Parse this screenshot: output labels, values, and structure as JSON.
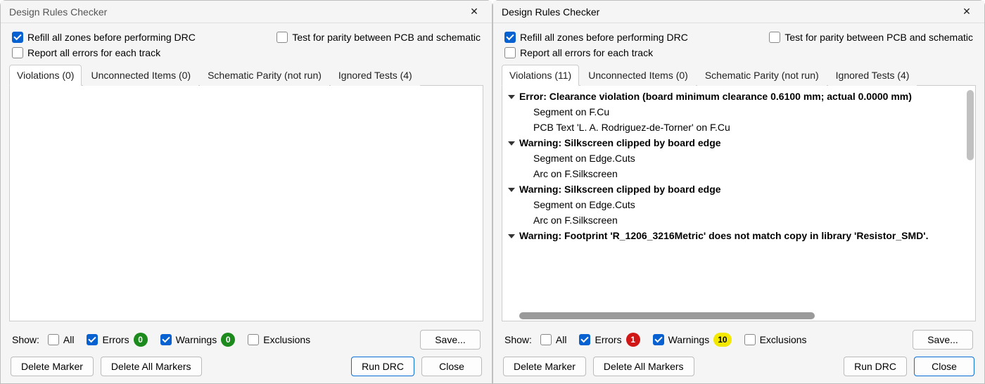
{
  "colors": {
    "accent": "#0761d1",
    "badge_green": "#1c8a1c",
    "badge_red": "#d11616",
    "badge_yellow": "#f2e800",
    "window_bg": "#f5f5f5",
    "pane_bg": "#ffffff",
    "border": "#cccccc",
    "scrollbar": "#9a9a9a"
  },
  "left": {
    "title": "Design Rules Checker",
    "options": {
      "refill": {
        "label": "Refill all zones before performing DRC",
        "checked": true
      },
      "parity": {
        "label": "Test for parity between PCB and schematic",
        "checked": false
      },
      "report_all": {
        "label": "Report all errors for each track",
        "checked": false
      }
    },
    "tabs": [
      {
        "label": "Violations (0)",
        "active": true
      },
      {
        "label": "Unconnected Items (0)",
        "active": false
      },
      {
        "label": "Schematic Parity (not run)",
        "active": false
      },
      {
        "label": "Ignored Tests (4)",
        "active": false
      }
    ],
    "tree": [],
    "show": {
      "label": "Show:",
      "all": {
        "label": "All",
        "checked": false
      },
      "errors": {
        "label": "Errors",
        "checked": true,
        "count": "0",
        "count_color": "green"
      },
      "warnings": {
        "label": "Warnings",
        "checked": true,
        "count": "0",
        "count_color": "green"
      },
      "exclusions": {
        "label": "Exclusions",
        "checked": false
      }
    },
    "buttons": {
      "save": "Save...",
      "delete_marker": "Delete Marker",
      "delete_all": "Delete All Markers",
      "run": "Run DRC",
      "close": "Close"
    }
  },
  "right": {
    "title": "Design Rules Checker",
    "options": {
      "refill": {
        "label": "Refill all zones before performing DRC",
        "checked": true
      },
      "parity": {
        "label": "Test for parity between PCB and schematic",
        "checked": false
      },
      "report_all": {
        "label": "Report all errors for each track",
        "checked": false
      }
    },
    "tabs": [
      {
        "label": "Violations (11)",
        "active": true
      },
      {
        "label": "Unconnected Items (0)",
        "active": false
      },
      {
        "label": "Schematic Parity (not run)",
        "active": false
      },
      {
        "label": "Ignored Tests (4)",
        "active": false
      }
    ],
    "tree": [
      {
        "type": "hdr",
        "text": "Error: Clearance violation (board minimum clearance 0.6100 mm; actual 0.0000 mm)"
      },
      {
        "type": "item",
        "text": "Segment on F.Cu"
      },
      {
        "type": "item",
        "text": "PCB Text 'L. A. Rodriguez-de-Torner' on F.Cu"
      },
      {
        "type": "hdr",
        "text": "Warning: Silkscreen clipped by board edge"
      },
      {
        "type": "item",
        "text": "Segment on Edge.Cuts"
      },
      {
        "type": "item",
        "text": "Arc on F.Silkscreen"
      },
      {
        "type": "hdr",
        "text": "Warning: Silkscreen clipped by board edge"
      },
      {
        "type": "item",
        "text": "Segment on Edge.Cuts"
      },
      {
        "type": "item",
        "text": "Arc on F.Silkscreen"
      },
      {
        "type": "hdr",
        "text": "Warning: Footprint 'R_1206_3216Metric' does not match copy in library 'Resistor_SMD'."
      }
    ],
    "show": {
      "label": "Show:",
      "all": {
        "label": "All",
        "checked": false
      },
      "errors": {
        "label": "Errors",
        "checked": true,
        "count": "1",
        "count_color": "red"
      },
      "warnings": {
        "label": "Warnings",
        "checked": true,
        "count": "10",
        "count_color": "yellow"
      },
      "exclusions": {
        "label": "Exclusions",
        "checked": false
      }
    },
    "buttons": {
      "save": "Save...",
      "delete_marker": "Delete Marker",
      "delete_all": "Delete All Markers",
      "run": "Run DRC",
      "close": "Close"
    }
  }
}
